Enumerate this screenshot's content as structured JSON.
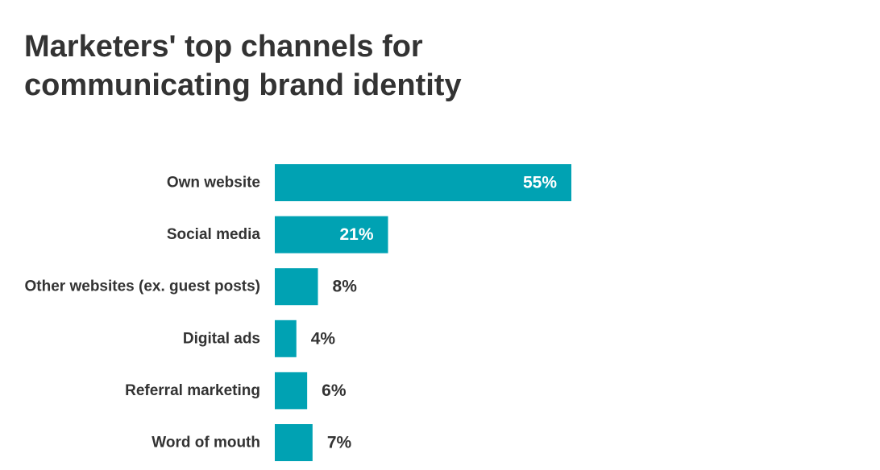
{
  "chart_data": {
    "type": "bar",
    "orientation": "horizontal",
    "title_lines": [
      "Marketers' top channels for",
      "communicating brand identity"
    ],
    "categories": [
      "Own website",
      "Social media",
      "Other websites (ex. guest posts)",
      "Digital ads",
      "Referral marketing",
      "Word of mouth"
    ],
    "values": [
      55,
      21,
      8,
      4,
      6,
      7
    ],
    "value_labels": [
      "55%",
      "21%",
      "8%",
      "4%",
      "6%",
      "7%"
    ],
    "xlim": [
      0,
      55
    ],
    "grid": false,
    "legend": "none",
    "bar_color": "#00a2b3",
    "label_color": "#333333",
    "inside_label_color": "#ffffff"
  }
}
